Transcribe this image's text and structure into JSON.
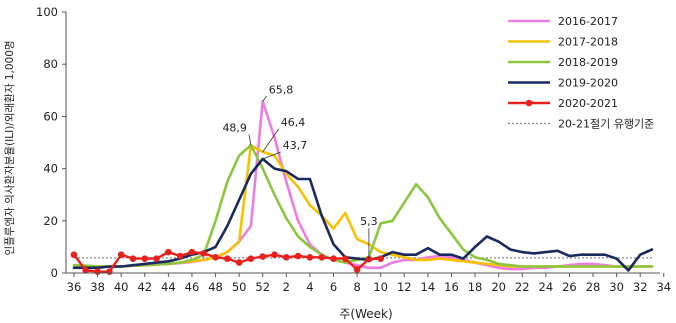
{
  "chart_data": {
    "type": "line",
    "xlabel": "주(Week)",
    "ylabel": "인플루엔자 의사환자분율(ILI)/외래환자 1,000명",
    "ylim": [
      0,
      100
    ],
    "yticks": [
      0,
      20,
      40,
      60,
      80,
      100
    ],
    "x_tick_labels": [
      "36",
      "38",
      "40",
      "42",
      "44",
      "46",
      "48",
      "50",
      "52",
      "2",
      "4",
      "6",
      "8",
      "10",
      "12",
      "14",
      "16",
      "18",
      "20",
      "22",
      "24",
      "26",
      "28",
      "30",
      "32",
      "34"
    ],
    "legend_position": "top-right",
    "grid": false,
    "epidemic_threshold": {
      "name": "20-21절기 유행기준",
      "value": 5.8,
      "color": "#888888"
    },
    "annotations": [
      {
        "text": "65,8",
        "series": "2016-2017",
        "index": 16
      },
      {
        "text": "48,9",
        "series": "2017-2018",
        "index": 15
      },
      {
        "text": "46,4",
        "series": "2017-2018",
        "index": 16
      },
      {
        "text": "43,7",
        "series": "2019-2020",
        "index": 16
      },
      {
        "text": "5,3",
        "series": "2020-2021",
        "index": 25
      }
    ],
    "series": [
      {
        "name": "2016-2017",
        "color": "#ee7ce0",
        "values": [
          3,
          2.5,
          2.2,
          2.5,
          2.5,
          2.8,
          3,
          3.3,
          3.5,
          3.8,
          4.2,
          5,
          6,
          8,
          12,
          18,
          65.8,
          52,
          35,
          20,
          11,
          7,
          5,
          4,
          3,
          2,
          2,
          4,
          5,
          5,
          6,
          6.5,
          6,
          5,
          4,
          3,
          2,
          1.5,
          1.5,
          2,
          2,
          2.5,
          3,
          3.5,
          3.5,
          3,
          2.5,
          2.5,
          2.5,
          2.5
        ]
      },
      {
        "name": "2017-2018",
        "color": "#f5c100",
        "values": [
          3,
          2.8,
          2.5,
          2.5,
          2.5,
          2.8,
          3,
          3.3,
          3.5,
          4,
          4.5,
          5,
          6,
          8,
          12,
          48.9,
          46.4,
          45,
          38,
          33,
          26,
          22,
          17,
          23,
          13,
          11,
          8,
          7,
          6,
          5,
          5,
          5.5,
          5,
          4.5,
          4,
          3.5,
          3,
          2.5,
          2.5,
          2.5,
          2.5,
          2.5,
          2.5,
          2.5,
          2.5,
          2.5,
          2.5,
          2.5,
          2.5,
          2.5
        ]
      },
      {
        "name": "2018-2019",
        "color": "#8cc63f",
        "values": [
          3,
          2.8,
          2.5,
          2.5,
          2.5,
          2.8,
          3,
          3.3,
          3.5,
          4,
          5,
          7,
          20,
          35,
          45,
          49,
          40,
          30,
          21,
          14,
          10,
          7,
          5,
          4,
          5,
          6,
          19,
          20,
          27,
          34,
          29,
          21,
          15,
          9,
          6,
          5,
          3.5,
          3,
          2.5,
          2.5,
          2.5,
          2.5,
          2.5,
          2.5,
          2.5,
          2.5,
          2.5,
          2.5,
          2.5,
          2.5
        ]
      },
      {
        "name": "2019-2020",
        "color": "#1a2a5e",
        "values": [
          2,
          2,
          2,
          2.5,
          2.5,
          3,
          3.5,
          4,
          4.5,
          5.5,
          7,
          8,
          10,
          18,
          28,
          38,
          43.7,
          40,
          39,
          36,
          36,
          22,
          11,
          6,
          5.5,
          5,
          6,
          8,
          7,
          7,
          9.5,
          7,
          7,
          5.5,
          10,
          14,
          12,
          9,
          8,
          7.5,
          8,
          8.5,
          6.5,
          7,
          7,
          7,
          5.5,
          1,
          7,
          9
        ]
      },
      {
        "name": "2020-2021",
        "color": "#e8201e",
        "values": [
          7,
          1,
          0.5,
          0.5,
          7,
          5.5,
          5.5,
          5.5,
          8,
          6.5,
          8,
          7.5,
          6,
          5.5,
          4,
          5.5,
          6.3,
          7,
          6,
          6.5,
          6,
          6,
          5.5,
          5.5,
          1.3,
          5.3,
          5.5
        ]
      }
    ]
  }
}
